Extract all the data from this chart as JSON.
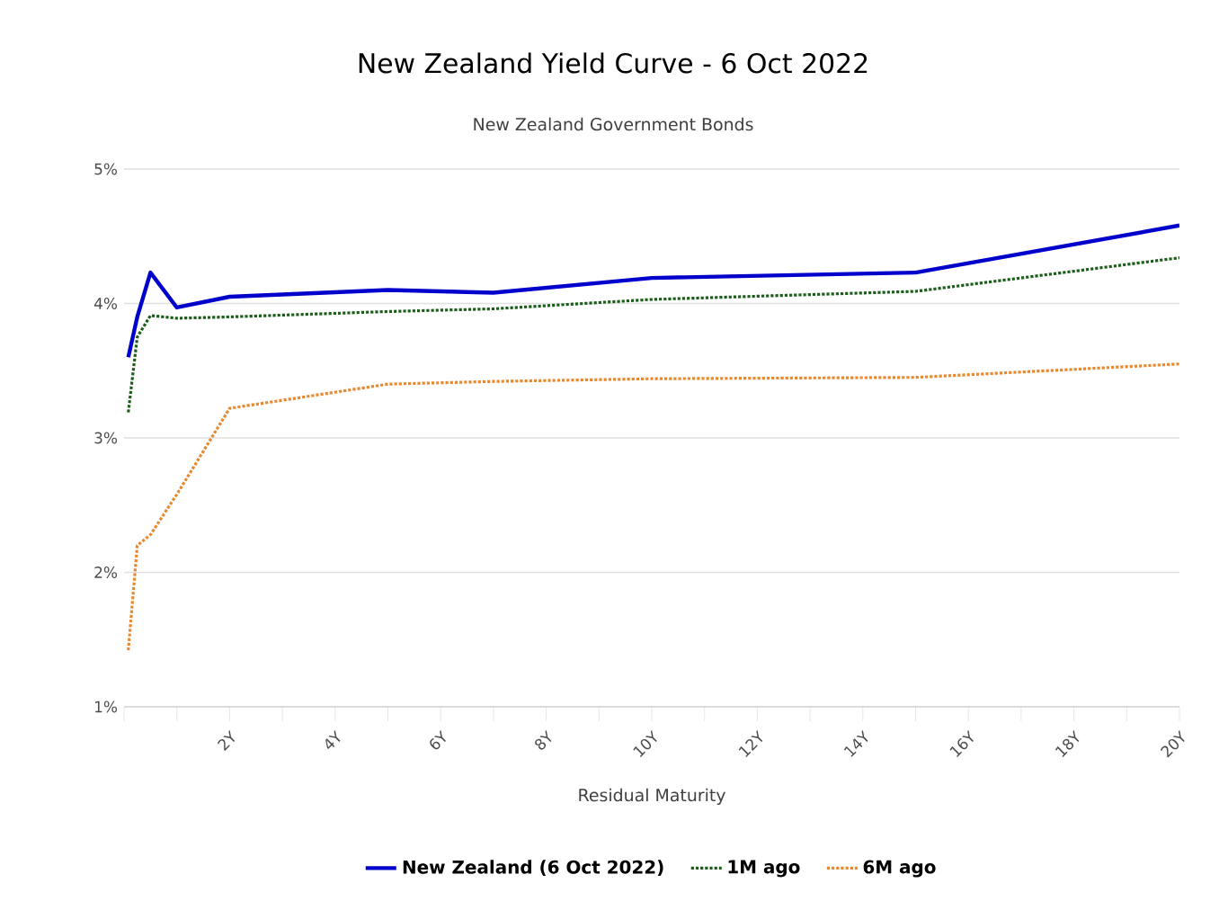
{
  "chart_data": {
    "type": "line",
    "title": "New Zealand Yield Curve - 6 Oct 2022",
    "subtitle": "New Zealand Government Bonds",
    "xlabel": "Residual Maturity",
    "x": [
      0.08,
      0.25,
      0.5,
      1,
      2,
      5,
      7,
      10,
      15,
      20
    ],
    "series": [
      {
        "name": "New Zealand (6 Oct 2022)",
        "color": "#0000cc",
        "line_style": "solid",
        "values": [
          3.6,
          3.9,
          4.23,
          3.97,
          4.05,
          4.1,
          4.08,
          4.19,
          4.23,
          4.58
        ]
      },
      {
        "name": "1M ago",
        "color": "#1a5e1a",
        "line_style": "dotted",
        "values": [
          3.19,
          3.75,
          3.91,
          3.89,
          3.9,
          3.94,
          3.96,
          4.03,
          4.09,
          4.34
        ]
      },
      {
        "name": "6M ago",
        "color": "#e8892e",
        "line_style": "dotted",
        "values": [
          1.42,
          2.2,
          2.28,
          2.58,
          3.22,
          3.4,
          3.42,
          3.44,
          3.45,
          3.55
        ]
      }
    ],
    "xlim": [
      0,
      20
    ],
    "xticks": [
      {
        "value": 0,
        "label": null
      },
      {
        "value": 1,
        "label": null
      },
      {
        "value": 2,
        "label": "2Y"
      },
      {
        "value": 3,
        "label": null
      },
      {
        "value": 4,
        "label": "4Y"
      },
      {
        "value": 5,
        "label": null
      },
      {
        "value": 6,
        "label": "6Y"
      },
      {
        "value": 7,
        "label": null
      },
      {
        "value": 8,
        "label": "8Y"
      },
      {
        "value": 9,
        "label": null
      },
      {
        "value": 10,
        "label": "10Y"
      },
      {
        "value": 11,
        "label": null
      },
      {
        "value": 12,
        "label": "12Y"
      },
      {
        "value": 13,
        "label": null
      },
      {
        "value": 14,
        "label": "14Y"
      },
      {
        "value": 15,
        "label": null
      },
      {
        "value": 16,
        "label": "16Y"
      },
      {
        "value": 17,
        "label": null
      },
      {
        "value": 18,
        "label": "18Y"
      },
      {
        "value": 19,
        "label": null
      },
      {
        "value": 20,
        "label": "20Y"
      }
    ],
    "ylim": [
      1,
      5
    ],
    "yticks": [
      {
        "value": 1,
        "label": "1%"
      },
      {
        "value": 2,
        "label": "2%"
      },
      {
        "value": 3,
        "label": "3%"
      },
      {
        "value": 4,
        "label": "4%"
      },
      {
        "value": 5,
        "label": "5%"
      }
    ],
    "grid": "y",
    "legend": "bottom"
  }
}
